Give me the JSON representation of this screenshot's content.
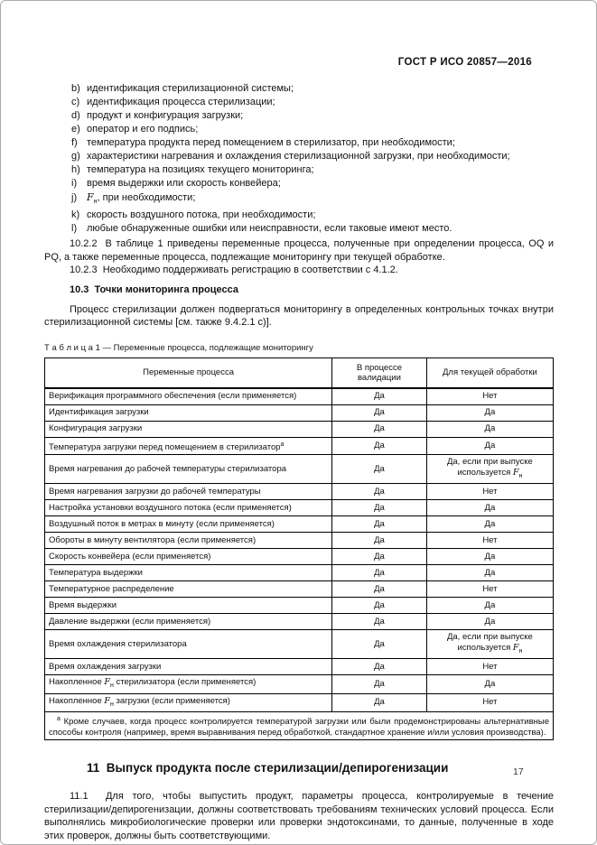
{
  "header": {
    "title": "ГОСТ Р ИСО 20857—2016"
  },
  "list": {
    "items": [
      {
        "marker": "b)",
        "text": "идентификация стерилизационной системы;"
      },
      {
        "marker": "c)",
        "text": "идентификация процесса стерилизации;"
      },
      {
        "marker": "d)",
        "text": "продукт и конфигурация загрузки;"
      },
      {
        "marker": "e)",
        "text": "оператор и его подпись;"
      },
      {
        "marker": "f)",
        "text": "температура продукта перед помещением в стерилизатор, при необходимости;"
      },
      {
        "marker": "g)",
        "text": "характеристики нагревания и охлаждения стерилизационной загрузки, при необходимости;"
      },
      {
        "marker": "h)",
        "text": "температура на позициях текущего мониторинга;"
      },
      {
        "marker": "i)",
        "text": "время выдержки или скорость конвейера;"
      },
      {
        "marker": "j)",
        "text": "{{F}}, при необходимости;"
      },
      {
        "marker": "k)",
        "text": "скорость воздушного потока, при необходимости;"
      },
      {
        "marker": "l)",
        "text": "любые обнаруженные ошибки или неисправности, если таковые имеют место."
      }
    ]
  },
  "paragraphs": {
    "p_10_2_2": "10.2.2  В таблице 1 приведены переменные процесса, полученные при определении процесса, OQ и PQ, а также переменные процесса, подлежащие мониторингу при текущей обработке.",
    "p_10_2_3": "10.2.3  Необходимо поддерживать регистрацию в соответствии с 4.1.2.",
    "h_10_3": "10.3  Точки мониторинга процесса",
    "p_10_3": "Процесс стерилизации должен подвергаться мониторингу в определенных контрольных точках внутри стерилизационной системы [см. также 9.4.2.1 c)].",
    "h_11": "11  Выпуск продукта после стерилизации/депирогенизации",
    "p_11_1": "11.1  Для того, чтобы выпустить продукт, параметры процесса, контролируемые в течение стерилизации/депирогенизации, должны соответствовать требованиям технических условий процесса. Если выполнялись микробиологические проверки или проверки эндотоксинами, то данные, полученные в ходе этих проверок, должны быть соответствующими."
  },
  "table": {
    "caption": "Т а б л и ц а  1 — Переменные процесса, подлежащие мониторингу",
    "columns": [
      "Переменные процесса",
      "В процессе валидации",
      "Для текущей обработки"
    ],
    "rows": [
      [
        "Верификация программного обеспечения (если применяется)",
        "Да",
        "Нет"
      ],
      [
        "Идентификация загрузки",
        "Да",
        "Да"
      ],
      [
        "Конфигурация загрузки",
        "Да",
        "Да"
      ],
      [
        "Температура загрузки перед помещением в стерилизатор{{a}}",
        "Да",
        "Да"
      ],
      [
        "Время нагревания до рабочей температуры стерилизатора",
        "Да",
        "Да, если при выпуске используется {{F}}"
      ],
      [
        "Время нагревания загрузки до рабочей температуры",
        "Да",
        "Нет"
      ],
      [
        "Настройка установки воздушного потока (если применяется)",
        "Да",
        "Да"
      ],
      [
        "Воздушный поток в метрах в минуту (если применяется)",
        "Да",
        "Да"
      ],
      [
        "Обороты в минуту вентилятора (если применяется)",
        "Да",
        "Нет"
      ],
      [
        "Скорость конвейера (если применяется)",
        "Да",
        "Да"
      ],
      [
        "Температура выдержки",
        "Да",
        "Да"
      ],
      [
        "Температурное распределение",
        "Да",
        "Нет"
      ],
      [
        "Время выдержки",
        "Да",
        "Да"
      ],
      [
        "Давление выдержки (если применяется)",
        "Да",
        "Да"
      ],
      [
        "Время охлаждения стерилизатора",
        "Да",
        "Да, если при выпуске используется {{F}}"
      ],
      [
        "Время охлаждения загрузки",
        "Да",
        "Нет"
      ],
      [
        "Накопленное {{F}} стерилизатора (если применяется)",
        "Да",
        "Да"
      ],
      [
        "Накопленное {{F}} загрузки (если применяется)",
        "Да",
        "Нет"
      ]
    ],
    "footnote": "{{a}} Кроме случаев, когда процесс контролируется температурой загрузки или были продемонстрированы альтернативные способы контроля (например, время выравнивания перед обработкой, стандартное хранение и/или условия производства)."
  },
  "footer": {
    "page_number": "17"
  }
}
